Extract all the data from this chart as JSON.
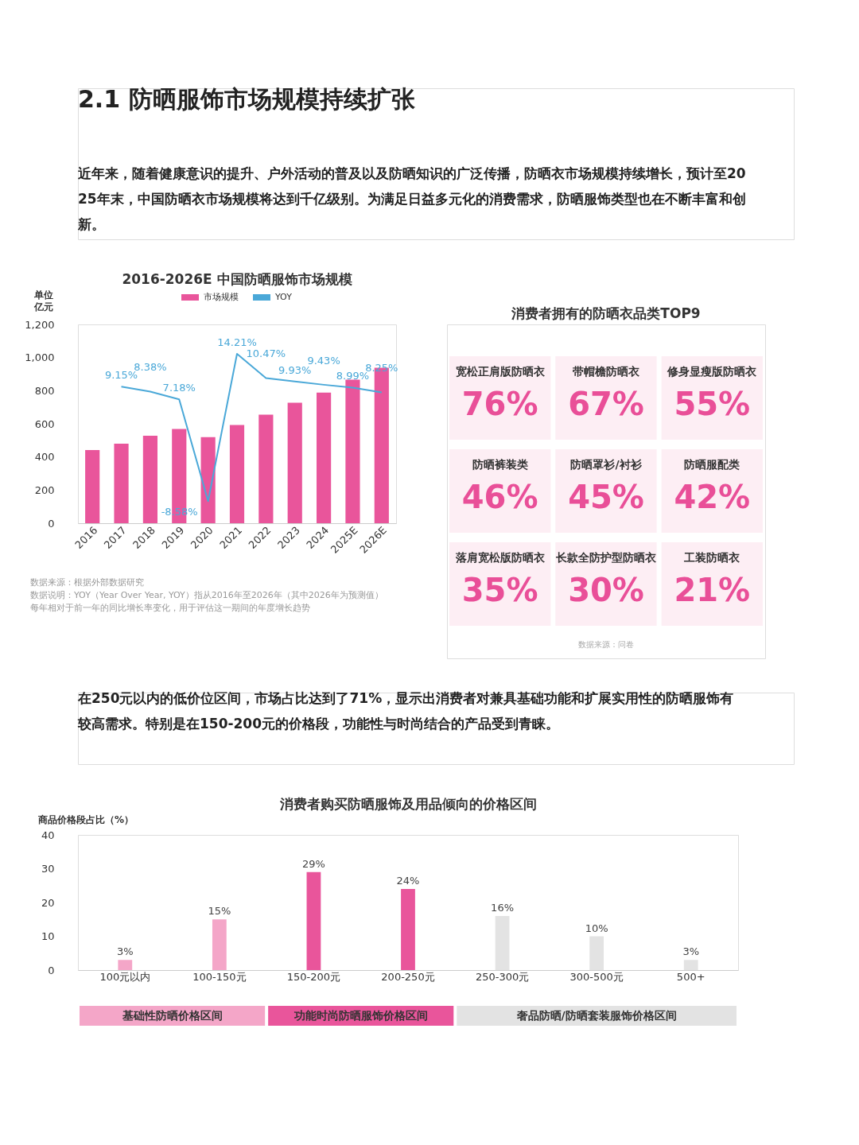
{
  "chart_data": [
    {
      "type": "other",
      "title": "2.1 防晒服饰市场规模持续扩张",
      "annotations": [
        "近年来，随着健康意识的提升、户外活动的普及以及防晒知识的广泛传播，防晒衣市场规模持续增长，预计至2025年末，中国防晒衣市场规模将达到千亿级别。为满足日益多元化的消费需求，防晒服饰类型也在不断丰富和创新。"
      ]
    },
    {
      "type": "bar",
      "title": "2016-2026E 中国防晒服饰市场规模",
      "ylabel": "单位亿元",
      "categories": [
        "2016",
        "2017",
        "2018",
        "2019",
        "2020",
        "2021",
        "2022",
        "2023",
        "2024",
        "2025E",
        "2026E"
      ],
      "series": [
        {
          "name": "市场规模",
          "color": "#e9559b",
          "values": [
            442,
            480,
            528,
            569,
            520,
            593,
            655,
            727,
            789,
            867,
            938
          ]
        },
        {
          "name": "YOY",
          "type": "line",
          "axis": "y2",
          "color": "#4aa8d8",
          "values": [
            null,
            9.15,
            8.38,
            7.18,
            -8.58,
            14.21,
            10.47,
            9.93,
            9.43,
            8.99,
            8.25
          ],
          "value_labels": [
            null,
            "9.15%",
            "8.38%",
            "7.18%",
            "-8.58%",
            "14.21%",
            "10.47%",
            "9.93%",
            "9.43%",
            "8.99%",
            "8.25%"
          ]
        }
      ],
      "ylim": [
        0,
        1200
      ],
      "yticks": [
        0,
        200,
        400,
        {
          "value": 600,
          "label": "600"
        },
        800,
        {
          "value": 1000,
          "label": "1,000"
        },
        {
          "value": 1200,
          "label": "1,200"
        }
      ],
      "legend": "top",
      "grid": false,
      "annotations": [
        "数据来源：根据外部数据研究",
        "数据说明：YOY（Year Over Year, YOY）指从2016年至2026年（其中2026年为预测值）",
        "每年相对于前一年的同比增长率变化，用于评估这一期间的年度增长趋势"
      ]
    },
    {
      "type": "other",
      "title": "消费者拥有的防晒衣品类TOP9",
      "categories": [
        "宽松正肩版防晒衣",
        "带帽檐防晒衣",
        "修身显瘦版防晒衣",
        "防晒裤装类",
        "防晒罩衫/衬衫",
        "防晒服配类",
        "落肩宽松版防晒衣",
        "长款全防护型防晒衣",
        "工装防晒衣"
      ],
      "values": [
        76,
        67,
        55,
        46,
        45,
        42,
        35,
        30,
        21
      ],
      "value_labels": [
        "76%",
        "67%",
        "55%",
        "46%",
        "45%",
        "42%",
        "35%",
        "30%",
        "21%"
      ],
      "annotations": [
        "数据来源：问卷"
      ]
    },
    {
      "type": "other",
      "annotations": [
        "在250元以内的低价位区间，市场占比达到了71%，显示出消费者对兼具基础功能和扩展实用性的防晒服饰有较高需求。特别是在150-200元的价格段，功能性与时尚结合的产品受到青睐。"
      ]
    },
    {
      "type": "bar",
      "title": "消费者购买防晒服饰及用品倾向的价格区间",
      "ylabel": "商品价格段占比（%）",
      "categories": [
        "100元以内",
        "100-150元",
        "150-200元",
        "200-250元",
        "250-300元",
        "300-500元",
        "500+"
      ],
      "values": [
        3,
        15,
        29,
        24,
        16,
        10,
        3
      ],
      "value_labels": [
        "3%",
        "15%",
        "29%",
        "24%",
        "16%",
        "10%",
        "3%"
      ],
      "colors": [
        "#f4a6c8",
        "#f4a6c8",
        "#e9559b",
        "#e9559b",
        "#e3e3e3",
        "#e3e3e3",
        "#e3e3e3"
      ],
      "ylim": [
        0,
        40
      ],
      "yticks": [
        0,
        10,
        20,
        30,
        40
      ],
      "grid": false,
      "annotations": [
        "基础性防晒价格区间",
        "功能时尚防晒服饰价格区间",
        "奢品防晒/防晒套装服饰价格区间"
      ]
    }
  ]
}
